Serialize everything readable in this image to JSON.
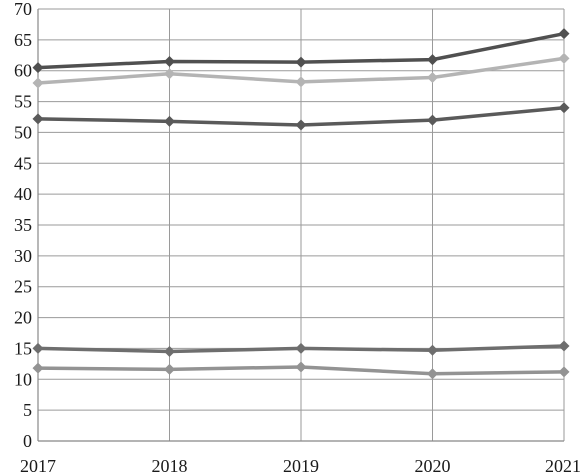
{
  "chart_data": {
    "type": "line",
    "x": [
      "2017",
      "2018",
      "2019",
      "2020",
      "2021"
    ],
    "yticks": [
      "0",
      "5",
      "10",
      "15",
      "20",
      "25",
      "30",
      "35",
      "40",
      "45",
      "50",
      "55",
      "60",
      "65",
      "70"
    ],
    "ylim": [
      0,
      70
    ],
    "grid": true,
    "legend": "none",
    "series": [
      {
        "values": [
          60.5,
          61.5,
          61.4,
          61.8,
          66.0
        ],
        "color": "#505050"
      },
      {
        "values": [
          58.0,
          59.5,
          58.2,
          58.9,
          62.0
        ],
        "color": "#b4b4b4"
      },
      {
        "values": [
          52.2,
          51.8,
          51.2,
          52.0,
          54.0
        ],
        "color": "#5a5a5a"
      },
      {
        "values": [
          15.0,
          14.5,
          15.0,
          14.7,
          15.4
        ],
        "color": "#6e6e6e"
      },
      {
        "values": [
          11.8,
          11.6,
          12.0,
          10.9,
          11.2
        ],
        "color": "#939393"
      }
    ]
  }
}
